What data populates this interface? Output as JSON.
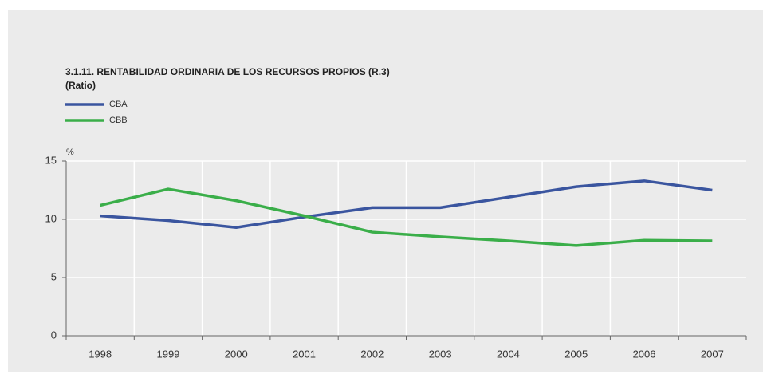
{
  "chart_data": {
    "type": "line",
    "title": "3.1.11. RENTABILIDAD ORDINARIA DE LOS RECURSOS PROPIOS (R.3)",
    "subtitle": "(Ratio)",
    "y_unit": "%",
    "categories": [
      "1998",
      "1999",
      "2000",
      "2001",
      "2002",
      "2003",
      "2004",
      "2005",
      "2006",
      "2007"
    ],
    "series": [
      {
        "name": "CBA",
        "color": "#3a559f",
        "values": [
          10.3,
          9.9,
          9.3,
          10.2,
          11.0,
          11.0,
          11.9,
          12.8,
          13.3,
          12.5
        ]
      },
      {
        "name": "CBB",
        "color": "#3aae49",
        "values": [
          11.2,
          12.6,
          11.6,
          10.3,
          8.9,
          8.5,
          8.15,
          7.75,
          8.2,
          8.15
        ]
      }
    ],
    "ylim": [
      0,
      15
    ],
    "yticks": [
      0,
      5,
      10,
      15
    ],
    "grid": true,
    "legend": "top-left"
  }
}
